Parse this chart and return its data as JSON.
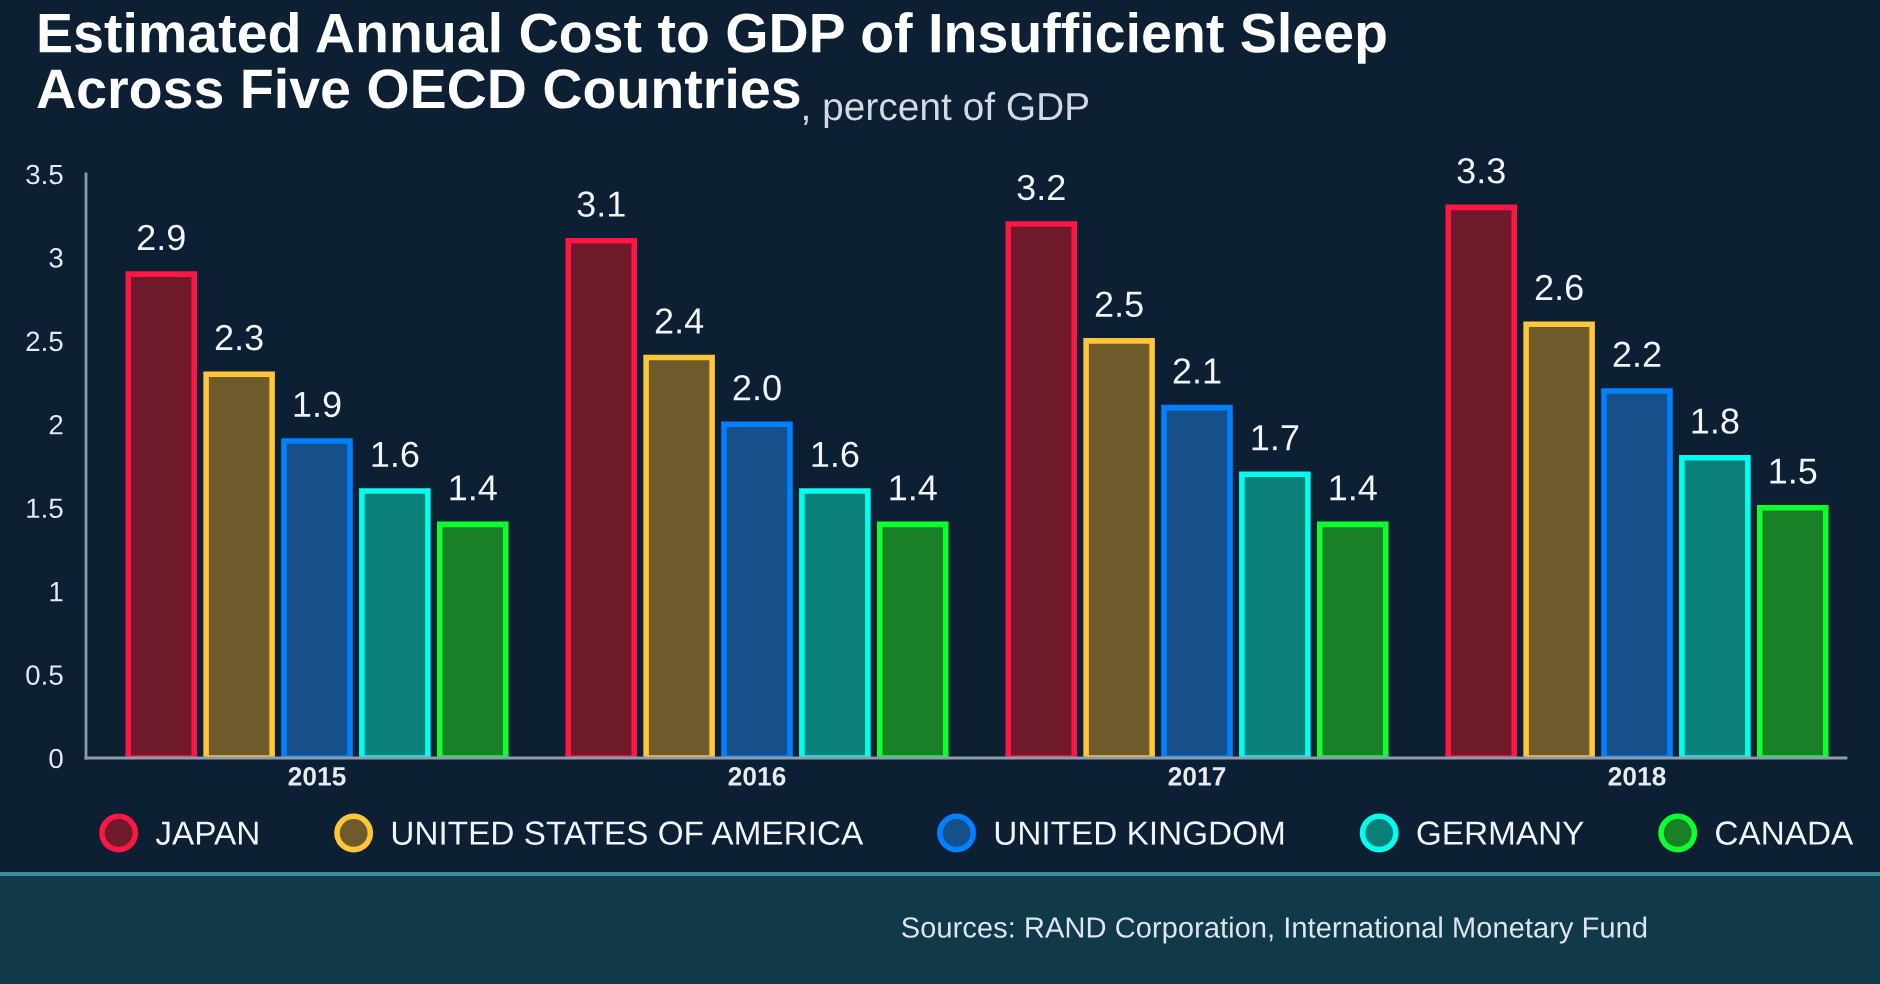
{
  "chart_data": {
    "type": "bar",
    "title": "Estimated Annual Cost to GDP of Insufficient Sleep Across Five OECD Countries",
    "subtitle": ", percent of GDP",
    "categories": [
      "2015",
      "2016",
      "2017",
      "2018"
    ],
    "series": [
      {
        "name": "JAPAN",
        "color": "#6e1a2a",
        "values": [
          2.9,
          3.1,
          3.2,
          3.3
        ],
        "value_labels": [
          "2.9",
          "3.1",
          "3.2",
          "3.3"
        ]
      },
      {
        "name": "UNITED STATES OF AMERICA",
        "color": "#6e5a2a",
        "values": [
          2.3,
          2.4,
          2.5,
          2.6
        ],
        "value_labels": [
          "2.3",
          "2.4",
          "2.5",
          "2.6"
        ]
      },
      {
        "name": "UNITED KINGDOM",
        "color": "#15508a",
        "values": [
          1.9,
          2.0,
          2.1,
          2.2
        ],
        "value_labels": [
          "1.9",
          "2.0",
          "2.1",
          "2.2"
        ]
      },
      {
        "name": "GERMANY",
        "color": "#0a8078",
        "values": [
          1.6,
          1.6,
          1.7,
          1.8
        ],
        "value_labels": [
          "1.6",
          "1.6",
          "1.7",
          "1.8"
        ]
      },
      {
        "name": "CANADA",
        "color": "#1a8028",
        "values": [
          1.4,
          1.4,
          1.4,
          1.5
        ],
        "value_labels": [
          "1.4",
          "1.4",
          "1.4",
          "1.5"
        ]
      }
    ],
    "ylim": [
      0,
      3.5
    ],
    "yticks": [
      0,
      0.5,
      1,
      1.5,
      2,
      2.5,
      3,
      3.5
    ],
    "legend": "bottom",
    "annotations": [
      "Sources: RAND Corporation, International Monetary Fund"
    ]
  }
}
